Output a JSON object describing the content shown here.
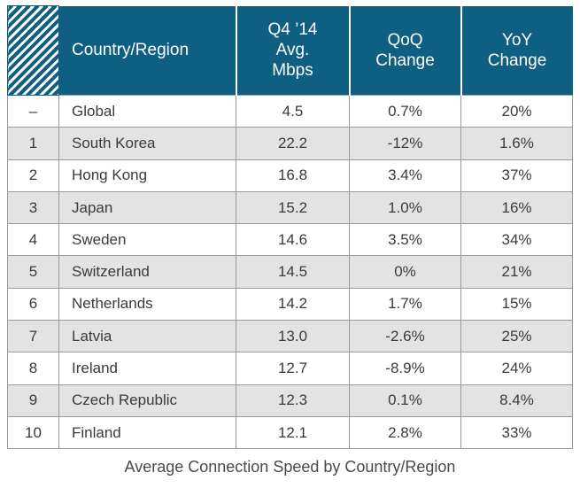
{
  "chart_data": {
    "type": "table",
    "title": "Average Connection Speed by Country/Region",
    "columns": [
      "",
      "Country/Region",
      "Q4 ’14 Avg. Mbps",
      "QoQ Change",
      "YoY Change"
    ],
    "header": {
      "country": "Country/Region",
      "speed": [
        "Q4 ’14",
        "Avg.",
        "Mbps"
      ],
      "qoq": [
        "QoQ",
        "Change"
      ],
      "yoy": [
        "YoY",
        "Change"
      ]
    },
    "rows": [
      {
        "rank": "–",
        "country": "Global",
        "speed": "4.5",
        "qoq": "0.7%",
        "yoy": "20%"
      },
      {
        "rank": "1",
        "country": "South Korea",
        "speed": "22.2",
        "qoq": "-12%",
        "yoy": "1.6%"
      },
      {
        "rank": "2",
        "country": "Hong Kong",
        "speed": "16.8",
        "qoq": "3.4%",
        "yoy": "37%"
      },
      {
        "rank": "3",
        "country": "Japan",
        "speed": "15.2",
        "qoq": "1.0%",
        "yoy": "16%"
      },
      {
        "rank": "4",
        "country": "Sweden",
        "speed": "14.6",
        "qoq": "3.5%",
        "yoy": "34%"
      },
      {
        "rank": "5",
        "country": "Switzerland",
        "speed": "14.5",
        "qoq": "0%",
        "yoy": "21%"
      },
      {
        "rank": "6",
        "country": "Netherlands",
        "speed": "14.2",
        "qoq": "1.7%",
        "yoy": "15%"
      },
      {
        "rank": "7",
        "country": "Latvia",
        "speed": "13.0",
        "qoq": "-2.6%",
        "yoy": "25%"
      },
      {
        "rank": "8",
        "country": "Ireland",
        "speed": "12.7",
        "qoq": "-8.9%",
        "yoy": "24%"
      },
      {
        "rank": "9",
        "country": "Czech Republic",
        "speed": "12.3",
        "qoq": "0.1%",
        "yoy": "8.4%"
      },
      {
        "rank": "10",
        "country": "Finland",
        "speed": "12.1",
        "qoq": "2.8%",
        "yoy": "33%"
      }
    ],
    "colors": {
      "header": "#0f5f83",
      "stripe": "#e3e3e3",
      "border": "#9a9a9a"
    }
  }
}
